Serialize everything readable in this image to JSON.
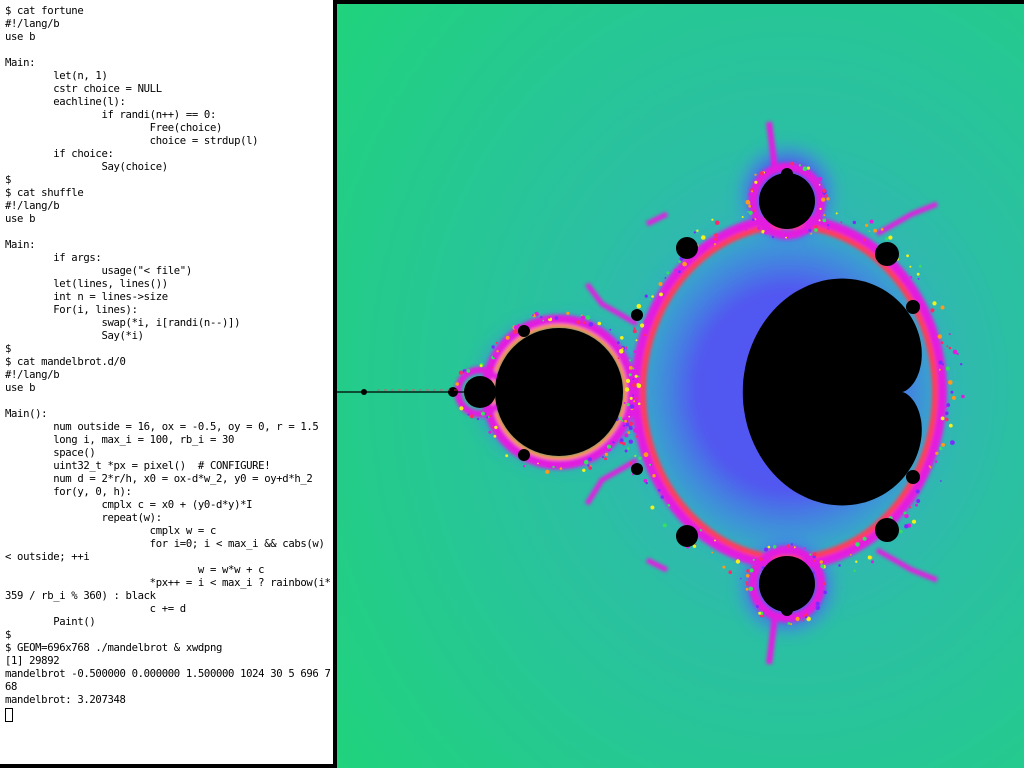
{
  "terminal": {
    "lines": [
      "$ cat fortune",
      "#!/lang/b",
      "use b",
      "",
      "Main:",
      "        let(n, 1)",
      "        cstr choice = NULL",
      "        eachline(l):",
      "                if randi(n++) == 0:",
      "                        Free(choice)",
      "                        choice = strdup(l)",
      "        if choice:",
      "                Say(choice)",
      "$",
      "$ cat shuffle",
      "#!/lang/b",
      "use b",
      "",
      "Main:",
      "        if args:",
      "                usage(\"< file\")",
      "        let(lines, lines())",
      "        int n = lines->size",
      "        For(i, lines):",
      "                swap(*i, i[randi(n--)])",
      "                Say(*i)",
      "$",
      "$ cat mandelbrot.d/0",
      "#!/lang/b",
      "use b",
      "",
      "Main():",
      "        num outside = 16, ox = -0.5, oy = 0, r = 1.5",
      "        long i, max_i = 100, rb_i = 30",
      "        space()",
      "        uint32_t *px = pixel()  # CONFIGURE!",
      "        num d = 2*r/h, x0 = ox-d*w_2, y0 = oy+d*h_2",
      "        for(y, 0, h):",
      "                cmplx c = x0 + (y0-d*y)*I",
      "                repeat(w):",
      "                        cmplx w = c",
      "                        for i=0; i < max_i && cabs(w)",
      "< outside; ++i",
      "                                w = w*w + c",
      "                        *px++ = i < max_i ? rainbow(i*",
      "359 / rb_i % 360) : black",
      "                        c += d",
      "        Paint()",
      "$",
      "$ GEOM=696x768 ./mandelbrot & xwdpng",
      "[1] 29892",
      "mandelbrot -0.500000 0.000000 1.500000 1024 30 5 696 7",
      "68",
      "mandelbrot: 3.207348"
    ]
  },
  "fractal": {
    "center_x": -0.5,
    "center_y": 0,
    "radius": 1.5,
    "max_iterations": 100,
    "rainbow_period": 30,
    "colors": {
      "background": "#1fd47a",
      "background_inner": "#38a8c8",
      "set": "#000000",
      "halo": [
        "#7a2cff",
        "#e21be0",
        "#ff2a6a",
        "#ff9a1a",
        "#f2f21a",
        "#34e060"
      ]
    }
  }
}
